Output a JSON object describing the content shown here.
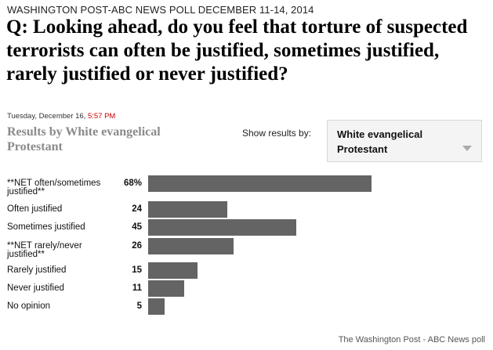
{
  "header": {
    "poll_name": "WASHINGTON POST-ABC NEWS POLL DECEMBER 11-14, 2014",
    "question": "Q: Looking ahead, do you feel that torture of suspected terrorists can often be justified, sometimes justified, rarely justified or never justified?",
    "date_text": "Tuesday, December 16,",
    "time_text": "5:57 PM",
    "time_color": "#cc0000"
  },
  "results": {
    "heading": "Results by White evangelical Protestant",
    "show_label": "Show results by:",
    "selected_group": "White evangelical Protestant",
    "bar_color": "#646464"
  },
  "chart_data": {
    "type": "bar",
    "orientation": "horizontal",
    "categories": [
      "**NET often/sometimes justified**",
      "Often justified",
      "Sometimes justified",
      "**NET rarely/never justified**",
      "Rarely justified",
      "Never justified",
      "No opinion"
    ],
    "value_labels": [
      "68%",
      "24",
      "45",
      "26",
      "15",
      "11",
      "5"
    ],
    "values": [
      68,
      24,
      45,
      26,
      15,
      11,
      5
    ],
    "xlim": [
      0,
      100
    ],
    "grid": false
  },
  "footer": {
    "credit": "The Washington Post - ABC News poll"
  }
}
